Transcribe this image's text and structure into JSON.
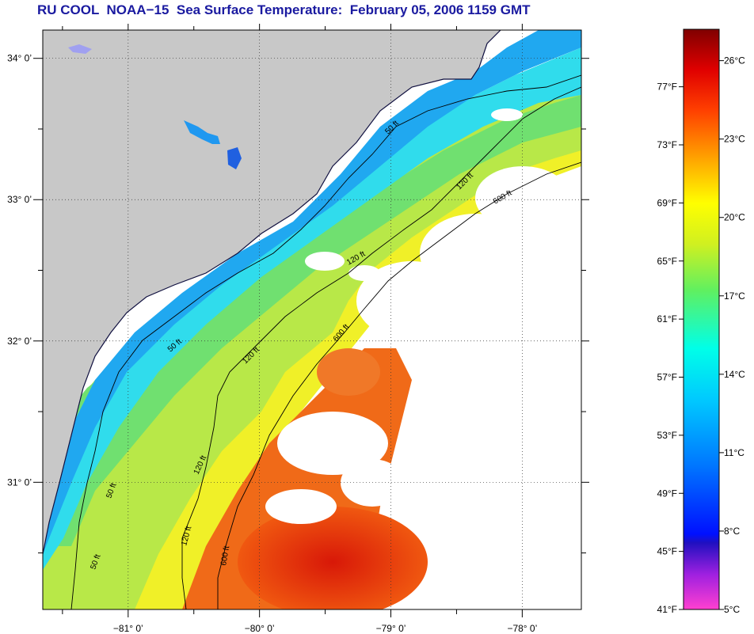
{
  "title": "RU COOL  NOAA−15  Sea Surface Temperature:  February 05, 2006 1159 GMT",
  "map": {
    "lon_range": [
      -81.65,
      -77.55
    ],
    "lat_range": [
      30.1,
      34.2
    ],
    "lat_labels": [
      "34° 0’",
      "33° 0’",
      "32° 0’",
      "31° 0’"
    ],
    "lat_values": [
      34,
      33,
      32,
      31
    ],
    "lon_labels": [
      "−81° 0’",
      "−80° 0’",
      "−79° 0’",
      "−78° 0’"
    ],
    "lon_values": [
      -81,
      -80,
      -79,
      -78
    ],
    "contour_labels": [
      "50 ft",
      "120 ft",
      "600 ft"
    ],
    "colors": {
      "land": "#c8c8c8",
      "cloud": "#ffffff",
      "coastal_cold": "#18a0f0",
      "shelf": "#30e0e0",
      "mid_shelf": "#a0e040",
      "outer_shelf": "#f0f020",
      "gulf_stream": "#f06010",
      "core": "#e02010"
    }
  },
  "colorbar": {
    "fahrenheit_labels": [
      "77°F",
      "73°F",
      "69°F",
      "65°F",
      "61°F",
      "57°F",
      "53°F",
      "49°F",
      "45°F",
      "41°F"
    ],
    "fahrenheit_values": [
      77,
      73,
      69,
      65,
      61,
      57,
      53,
      49,
      45,
      41
    ],
    "celsius_labels": [
      "26°C",
      "23°C",
      "20°C",
      "17°C",
      "14°C",
      "11°C",
      "8°C",
      "5°C"
    ],
    "celsius_values": [
      26,
      23,
      20,
      17,
      14,
      11,
      8,
      5
    ],
    "range_c": [
      5,
      27.2
    ]
  }
}
